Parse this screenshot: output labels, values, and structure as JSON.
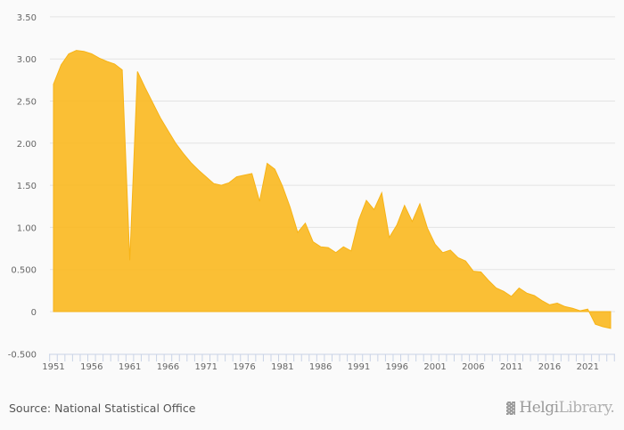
{
  "chart_data": {
    "type": "area",
    "title": "",
    "xlabel": "",
    "ylabel": "",
    "color": "#f9b81f",
    "ylim": [
      -0.5,
      3.5
    ],
    "yticks": [
      "3.50",
      "3.00",
      "2.50",
      "2.00",
      "1.50",
      "1.00",
      "0.500",
      "0",
      "-0.500"
    ],
    "ytick_values": [
      3.5,
      3.0,
      2.5,
      2.0,
      1.5,
      1.0,
      0.5,
      0,
      -0.5
    ],
    "xticks": [
      1951,
      1956,
      1961,
      1966,
      1971,
      1976,
      1981,
      1986,
      1991,
      1996,
      2001,
      2006,
      2011,
      2016,
      2021
    ],
    "grid": true,
    "legend": "none",
    "x": [
      1951,
      1952,
      1953,
      1954,
      1955,
      1956,
      1957,
      1958,
      1959,
      1960,
      1961,
      1962,
      1963,
      1964,
      1965,
      1966,
      1967,
      1968,
      1969,
      1970,
      1971,
      1972,
      1973,
      1974,
      1975,
      1976,
      1977,
      1978,
      1979,
      1980,
      1981,
      1982,
      1983,
      1984,
      1985,
      1986,
      1987,
      1988,
      1989,
      1990,
      1991,
      1992,
      1993,
      1994,
      1995,
      1996,
      1997,
      1998,
      1999,
      2000,
      2001,
      2002,
      2003,
      2004,
      2005,
      2006,
      2007,
      2008,
      2009,
      2010,
      2011,
      2012,
      2013,
      2014,
      2015,
      2016,
      2017,
      2018,
      2019,
      2020,
      2021,
      2022,
      2023,
      2024
    ],
    "values": [
      2.7,
      2.93,
      3.06,
      3.1,
      3.09,
      3.06,
      3.01,
      2.97,
      2.94,
      2.87,
      0.61,
      2.85,
      2.66,
      2.48,
      2.3,
      2.15,
      2.0,
      1.88,
      1.77,
      1.68,
      1.6,
      1.52,
      1.5,
      1.53,
      1.6,
      1.62,
      1.64,
      1.31,
      1.76,
      1.69,
      1.49,
      1.24,
      0.94,
      1.05,
      0.83,
      0.77,
      0.76,
      0.7,
      0.77,
      0.72,
      1.09,
      1.32,
      1.21,
      1.41,
      0.88,
      1.03,
      1.26,
      1.07,
      1.28,
      0.99,
      0.8,
      0.7,
      0.73,
      0.64,
      0.6,
      0.48,
      0.47,
      0.37,
      0.28,
      0.24,
      0.18,
      0.28,
      0.22,
      0.19,
      0.13,
      0.08,
      0.1,
      0.06,
      0.04,
      0.01,
      0.03,
      -0.15,
      -0.18,
      -0.2
    ]
  },
  "footer": {
    "source": "Source: National Statistical Office",
    "logo_brand": "Helgi",
    "logo_suffix": "Library."
  }
}
